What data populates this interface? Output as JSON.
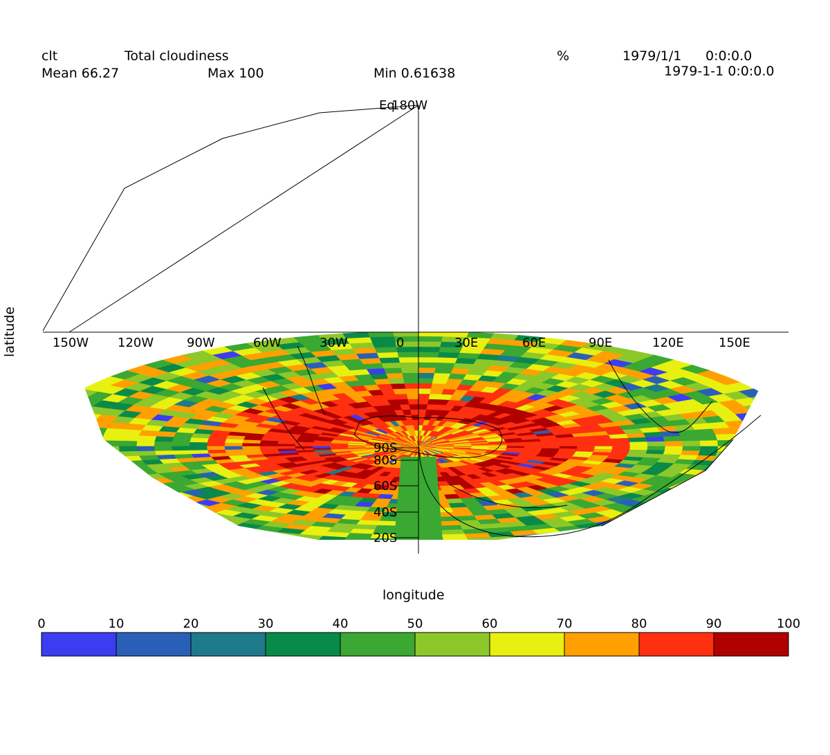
{
  "header": {
    "variable": "clt",
    "long_name": "Total cloudiness",
    "units": "%",
    "date": "1979/1/1",
    "time": "0:0:0.0",
    "datetime": "1979-1-1 0:0:0.0",
    "mean_label": "Mean 66.27",
    "max_label": "Max 100",
    "min_label": "Min 0.61638"
  },
  "axes": {
    "xlabel": "longitude",
    "ylabel": "latitude",
    "top_label": "Eq",
    "top_label_2": "180W"
  },
  "lon_labels": [
    "150W",
    "120W",
    "90W",
    "60W",
    "30W",
    "0",
    "30E",
    "60E",
    "90E",
    "120E",
    "150E"
  ],
  "lat_labels": [
    "90S",
    "80S",
    "60S",
    "40S",
    "20S"
  ],
  "colorbar": {
    "ticks": [
      "0",
      "10",
      "20",
      "30",
      "40",
      "50",
      "60",
      "70",
      "80",
      "90",
      "100"
    ],
    "colors": [
      "#7f1dfa",
      "#3c3cf0",
      "#2a5fb8",
      "#1e7a8a",
      "#0a8a48",
      "#3aa832",
      "#8cc82a",
      "#e8f010",
      "#ffa000",
      "#ff3010",
      "#b00000"
    ]
  },
  "chart_data": {
    "type": "heatmap",
    "title": "Total cloudiness",
    "units": "%",
    "range": [
      0,
      100
    ],
    "stats": {
      "mean": 66.27,
      "max": 100,
      "min": 0.61638
    },
    "projection": "polar (south pole)",
    "lon_ticks": [
      "150W",
      "120W",
      "90W",
      "60W",
      "30W",
      "0",
      "30E",
      "60E",
      "90E",
      "120E",
      "150E"
    ],
    "lat_ticks": [
      "90S",
      "80S",
      "60S",
      "40S",
      "20S"
    ]
  }
}
